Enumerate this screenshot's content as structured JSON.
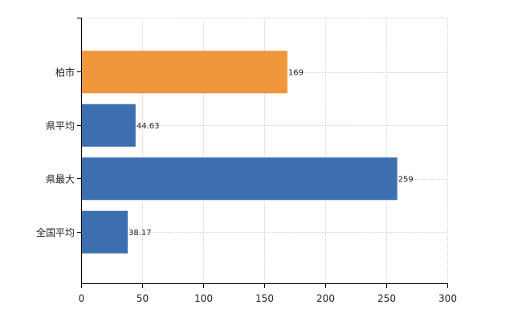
{
  "chart_data": {
    "type": "bar",
    "orientation": "horizontal",
    "categories": [
      "柏市",
      "県平均",
      "県最大",
      "全国平均"
    ],
    "values": [
      169,
      44.63,
      259,
      38.17
    ],
    "value_labels": [
      "169",
      "44.63",
      "259",
      "38.17"
    ],
    "bar_colors": [
      "#f0963c",
      "#3d6fb0",
      "#3d6fb0",
      "#3d6fb0"
    ],
    "xlim": [
      0,
      300
    ],
    "xticks": [
      0,
      50,
      100,
      150,
      200,
      250,
      300
    ],
    "xtick_labels": [
      "0",
      "50",
      "100",
      "150",
      "200",
      "250",
      "300"
    ],
    "grid": true,
    "grid_color": "#d0d0d0",
    "title": "",
    "xlabel": "",
    "ylabel": ""
  }
}
